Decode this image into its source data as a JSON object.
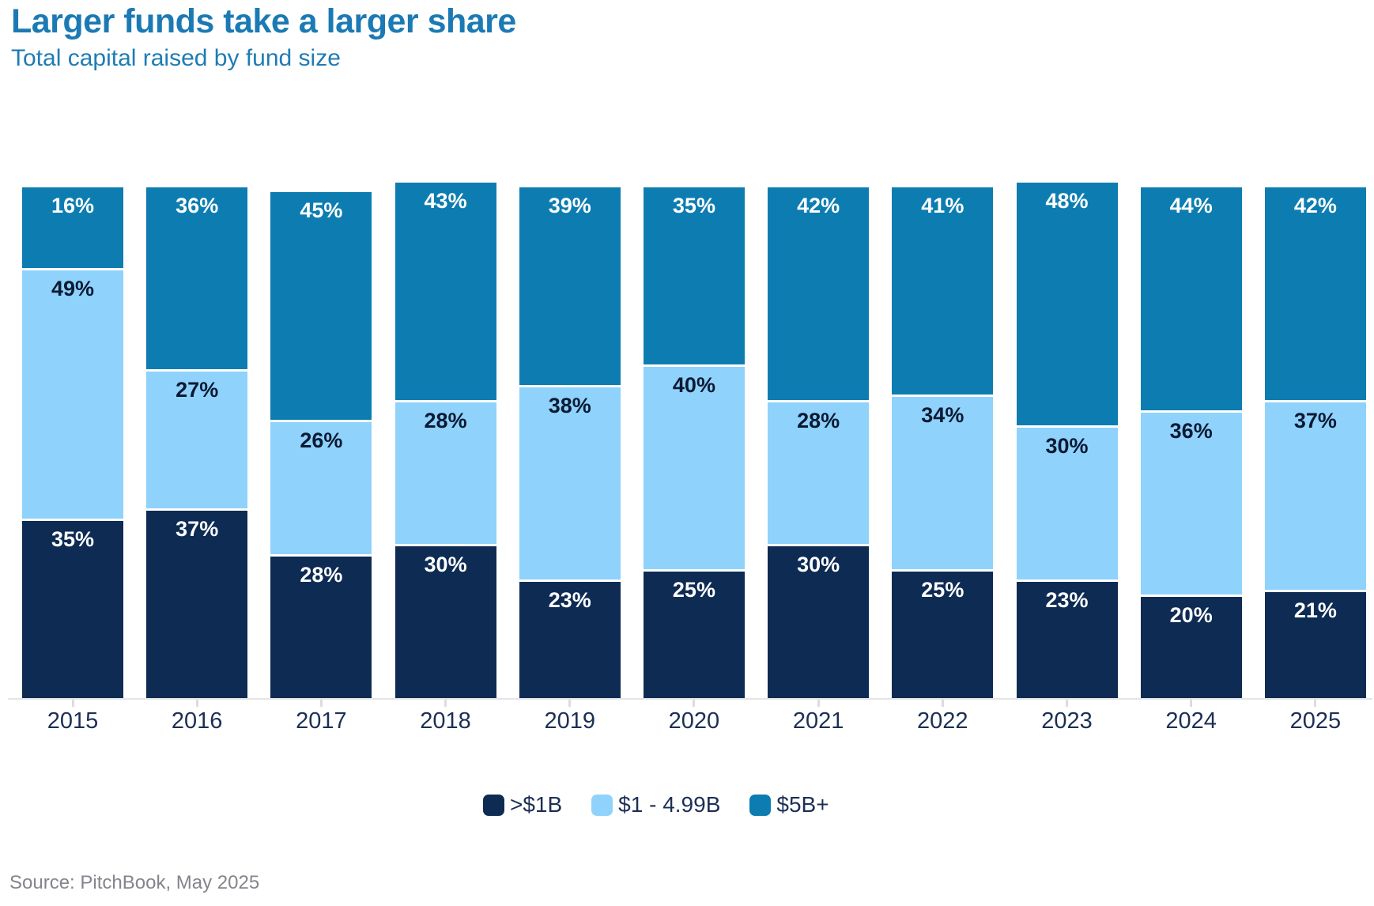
{
  "header": {
    "title": "Larger funds take a larger share",
    "subtitle": "Total capital raised by fund size"
  },
  "source": "Source: PitchBook, May 2025",
  "colors": {
    "navy": "#0d2b53",
    "light_blue": "#8fd2fc",
    "medium_blue": "#0d7db1",
    "title_blue": "#1b7ab4",
    "axis_gray": "#e4e4e6",
    "year_label": "#1c2f55",
    "source_gray": "#84848c"
  },
  "chart_data": {
    "type": "bar",
    "stacked": true,
    "title": "Larger funds take a larger share",
    "subtitle": "Total capital raised by fund size",
    "xlabel": "",
    "ylabel": "",
    "value_suffix": "%",
    "legend_position": "bottom",
    "grid": false,
    "categories": [
      "2015",
      "2016",
      "2017",
      "2018",
      "2019",
      "2020",
      "2021",
      "2022",
      "2023",
      "2024",
      "2025"
    ],
    "series": [
      {
        "name": ">$1B",
        "color": "#0d2b53",
        "label_color": "#ffffff",
        "values": [
          35,
          37,
          28,
          30,
          23,
          25,
          30,
          25,
          23,
          20,
          21
        ]
      },
      {
        "name": "$1 - 4.99B",
        "color": "#8fd2fc",
        "label_color": "#0b1a33",
        "values": [
          49,
          27,
          26,
          28,
          38,
          40,
          28,
          34,
          30,
          36,
          37
        ]
      },
      {
        "name": "$5B+",
        "color": "#0d7db1",
        "label_color": "#ffffff",
        "values": [
          16,
          36,
          45,
          43,
          39,
          35,
          42,
          41,
          48,
          44,
          42
        ]
      }
    ]
  },
  "legend": {
    "items": [
      {
        "label": ">$1B"
      },
      {
        "label": "$1 - 4.99B"
      },
      {
        "label": "$5B+"
      }
    ]
  }
}
